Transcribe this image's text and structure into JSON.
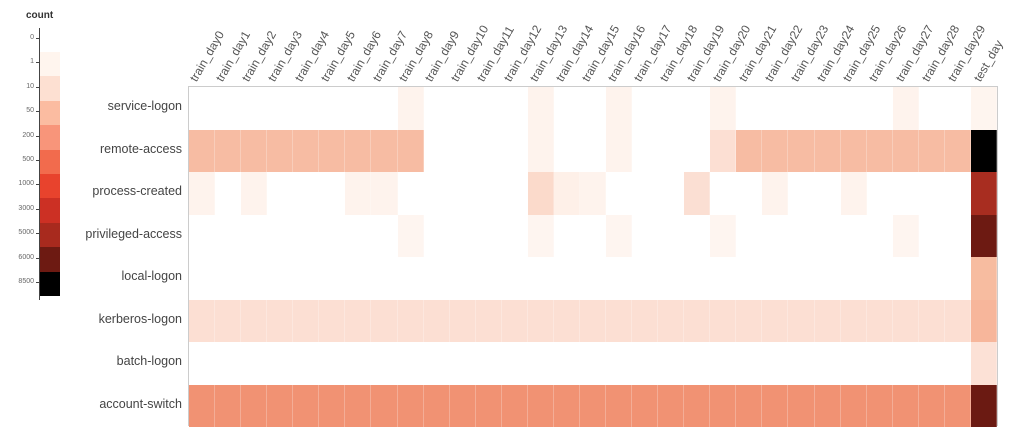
{
  "chart_data": {
    "type": "heatmap",
    "title": "",
    "xlabel": "",
    "ylabel": "",
    "legend": {
      "title": "count",
      "position": "left",
      "ticks": [
        "0",
        "1",
        "10",
        "50",
        "200",
        "500",
        "1000",
        "3000",
        "5000",
        "6000",
        "8500"
      ],
      "colors": [
        "#fff5ee",
        "#fde0d2",
        "#fbbca1",
        "#f8957a",
        "#f26b4d",
        "#e8432d",
        "#cc3024",
        "#a82a1e",
        "#6d1a12",
        "#000000"
      ]
    },
    "x": [
      "train_day0",
      "train_day1",
      "train_day2",
      "train_day3",
      "train_day4",
      "train_day5",
      "train_day6",
      "train_day7",
      "train_day8",
      "train_day9",
      "train_day10",
      "train_day11",
      "train_day12",
      "train_day13",
      "train_day14",
      "train_day15",
      "train_day16",
      "train_day17",
      "train_day18",
      "train_day19",
      "train_day20",
      "train_day21",
      "train_day22",
      "train_day23",
      "train_day24",
      "train_day25",
      "train_day26",
      "train_day27",
      "train_day28",
      "train_day29",
      "test_day"
    ],
    "y": [
      "service-logon",
      "remote-access",
      "process-created",
      "privileged-access",
      "local-logon",
      "kerberos-logon",
      "batch-logon",
      "account-switch"
    ],
    "values": [
      [
        0,
        0,
        0,
        0,
        0,
        0,
        0,
        0,
        2,
        0,
        0,
        0,
        0,
        2,
        0,
        0,
        2,
        0,
        0,
        0,
        2,
        0,
        0,
        0,
        0,
        0,
        0,
        2,
        0,
        0,
        2
      ],
      [
        120,
        120,
        120,
        120,
        120,
        120,
        120,
        120,
        120,
        0,
        0,
        0,
        0,
        2,
        0,
        0,
        2,
        0,
        0,
        0,
        15,
        120,
        120,
        120,
        120,
        120,
        120,
        120,
        120,
        120,
        8500
      ],
      [
        3,
        0,
        3,
        0,
        0,
        0,
        3,
        3,
        0,
        0,
        0,
        0,
        0,
        12,
        3,
        3,
        0,
        0,
        0,
        12,
        0,
        0,
        3,
        0,
        0,
        3,
        0,
        0,
        0,
        0,
        3500
      ],
      [
        0,
        0,
        0,
        0,
        0,
        0,
        0,
        0,
        2,
        0,
        0,
        0,
        0,
        2,
        0,
        0,
        2,
        0,
        0,
        0,
        2,
        0,
        0,
        0,
        0,
        0,
        0,
        2,
        0,
        0,
        6500
      ],
      [
        0,
        0,
        0,
        0,
        0,
        0,
        0,
        0,
        0,
        0,
        0,
        0,
        0,
        0,
        0,
        0,
        0,
        0,
        0,
        0,
        0,
        0,
        0,
        0,
        0,
        0,
        0,
        0,
        0,
        0,
        80
      ],
      [
        15,
        15,
        15,
        15,
        15,
        15,
        15,
        15,
        15,
        15,
        15,
        15,
        15,
        15,
        15,
        15,
        15,
        15,
        15,
        15,
        15,
        15,
        15,
        15,
        15,
        15,
        15,
        15,
        15,
        15,
        80
      ],
      [
        0,
        0,
        0,
        0,
        0,
        0,
        0,
        0,
        0,
        0,
        0,
        0,
        0,
        0,
        0,
        0,
        0,
        0,
        0,
        0,
        0,
        0,
        0,
        0,
        0,
        0,
        0,
        0,
        0,
        0,
        10
      ],
      [
        250,
        250,
        250,
        250,
        250,
        250,
        250,
        250,
        250,
        250,
        250,
        250,
        250,
        250,
        250,
        250,
        250,
        250,
        250,
        250,
        250,
        250,
        250,
        250,
        250,
        250,
        250,
        250,
        250,
        250,
        6500
      ]
    ],
    "cell_colors": [
      [
        "#ffffff",
        "#ffffff",
        "#ffffff",
        "#ffffff",
        "#ffffff",
        "#ffffff",
        "#ffffff",
        "#ffffff",
        "#fef3ed",
        "#ffffff",
        "#ffffff",
        "#ffffff",
        "#ffffff",
        "#fef3ed",
        "#ffffff",
        "#ffffff",
        "#fef3ed",
        "#ffffff",
        "#ffffff",
        "#ffffff",
        "#fef3ed",
        "#ffffff",
        "#ffffff",
        "#ffffff",
        "#ffffff",
        "#ffffff",
        "#ffffff",
        "#fef3ed",
        "#ffffff",
        "#ffffff",
        "#fef5ef"
      ],
      [
        "#f7bca3",
        "#f7bca3",
        "#f7bca3",
        "#f7bca3",
        "#f7bca3",
        "#f7bca3",
        "#f7bca3",
        "#f7bca3",
        "#f7bca3",
        "#ffffff",
        "#ffffff",
        "#ffffff",
        "#ffffff",
        "#fef3ed",
        "#ffffff",
        "#ffffff",
        "#fef3ed",
        "#ffffff",
        "#ffffff",
        "#ffffff",
        "#fcdfd3",
        "#f7bca3",
        "#f7bca3",
        "#f7bca3",
        "#f7bca3",
        "#f7bca3",
        "#f7bca3",
        "#f7bca3",
        "#f7bca3",
        "#f7bca3",
        "#000000"
      ],
      [
        "#fef3ed",
        "#ffffff",
        "#fef3ed",
        "#ffffff",
        "#ffffff",
        "#ffffff",
        "#fef3ed",
        "#fef3ed",
        "#ffffff",
        "#ffffff",
        "#ffffff",
        "#ffffff",
        "#ffffff",
        "#fbdacb",
        "#fef0e8",
        "#fef3ed",
        "#ffffff",
        "#ffffff",
        "#ffffff",
        "#fbdfd3",
        "#ffffff",
        "#ffffff",
        "#fef3ed",
        "#ffffff",
        "#ffffff",
        "#fef3ed",
        "#ffffff",
        "#ffffff",
        "#ffffff",
        "#ffffff",
        "#a82d20"
      ],
      [
        "#ffffff",
        "#ffffff",
        "#ffffff",
        "#ffffff",
        "#ffffff",
        "#ffffff",
        "#ffffff",
        "#ffffff",
        "#fef5f0",
        "#ffffff",
        "#ffffff",
        "#ffffff",
        "#ffffff",
        "#fef5f0",
        "#ffffff",
        "#ffffff",
        "#fef5f0",
        "#ffffff",
        "#ffffff",
        "#ffffff",
        "#fef5f0",
        "#ffffff",
        "#ffffff",
        "#ffffff",
        "#ffffff",
        "#ffffff",
        "#ffffff",
        "#fef5f0",
        "#ffffff",
        "#ffffff",
        "#6d1a12"
      ],
      [
        "#ffffff",
        "#ffffff",
        "#ffffff",
        "#ffffff",
        "#ffffff",
        "#ffffff",
        "#ffffff",
        "#ffffff",
        "#ffffff",
        "#ffffff",
        "#ffffff",
        "#ffffff",
        "#ffffff",
        "#ffffff",
        "#ffffff",
        "#ffffff",
        "#ffffff",
        "#ffffff",
        "#ffffff",
        "#ffffff",
        "#ffffff",
        "#ffffff",
        "#ffffff",
        "#ffffff",
        "#ffffff",
        "#ffffff",
        "#ffffff",
        "#ffffff",
        "#ffffff",
        "#ffffff",
        "#f7bca0"
      ],
      [
        "#fcdfd3",
        "#fcdfd3",
        "#fcdfd3",
        "#fcdfd3",
        "#fcdfd3",
        "#fcdfd3",
        "#fcdfd3",
        "#fcdfd3",
        "#fcdfd3",
        "#fcdfd3",
        "#fcdfd3",
        "#fcdfd3",
        "#fcdfd3",
        "#fcdfd3",
        "#fcdfd3",
        "#fcdfd3",
        "#fcdfd3",
        "#fcdfd3",
        "#fcdfd3",
        "#fcdfd3",
        "#fcdfd3",
        "#fcdfd3",
        "#fcdfd3",
        "#fcdfd3",
        "#fcdfd3",
        "#fcdfd3",
        "#fcdfd3",
        "#fcdfd3",
        "#fcdfd3",
        "#fcdfd3",
        "#f7b69b"
      ],
      [
        "#ffffff",
        "#ffffff",
        "#ffffff",
        "#ffffff",
        "#ffffff",
        "#ffffff",
        "#ffffff",
        "#ffffff",
        "#ffffff",
        "#ffffff",
        "#ffffff",
        "#ffffff",
        "#ffffff",
        "#ffffff",
        "#ffffff",
        "#ffffff",
        "#ffffff",
        "#ffffff",
        "#ffffff",
        "#ffffff",
        "#ffffff",
        "#ffffff",
        "#ffffff",
        "#ffffff",
        "#ffffff",
        "#ffffff",
        "#ffffff",
        "#ffffff",
        "#ffffff",
        "#ffffff",
        "#fce1d6"
      ],
      [
        "#f19273",
        "#f19273",
        "#f19273",
        "#f19273",
        "#f19273",
        "#f19273",
        "#f19273",
        "#f19273",
        "#f19273",
        "#f19273",
        "#f19273",
        "#f19273",
        "#f19273",
        "#f19273",
        "#f19273",
        "#f19273",
        "#f19273",
        "#f19273",
        "#f19273",
        "#f19273",
        "#f19273",
        "#f19273",
        "#f19273",
        "#f19273",
        "#f19273",
        "#f19273",
        "#f19273",
        "#f19273",
        "#f19273",
        "#f19273",
        "#6b1a12"
      ]
    ]
  }
}
